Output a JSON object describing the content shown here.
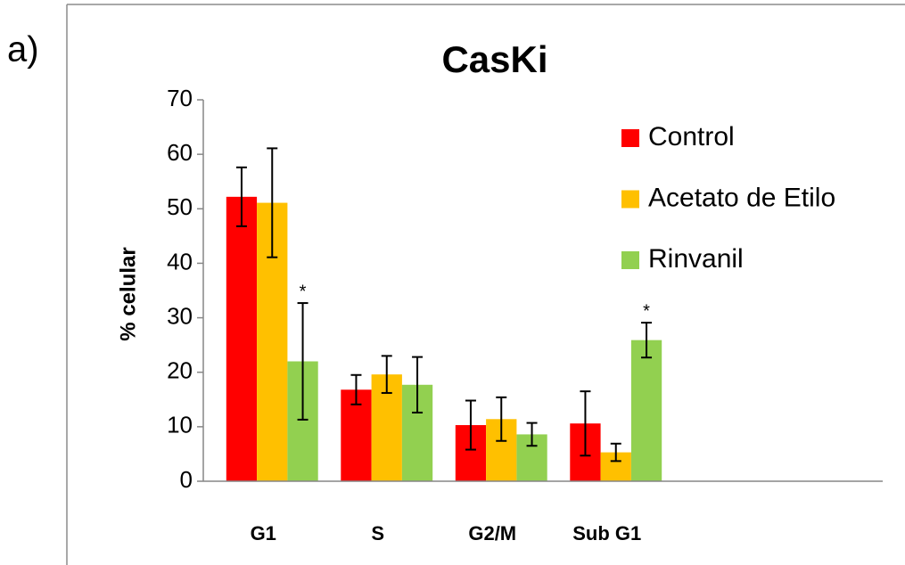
{
  "panel_label": "a)",
  "chart_data": {
    "type": "bar",
    "title": "CasKi",
    "y_label": "% celular",
    "categories": [
      "G1",
      "S",
      "G2/M",
      "Sub G1"
    ],
    "series": [
      {
        "name": "Control",
        "color": "#ff0000",
        "values": [
          52.2,
          16.8,
          10.3,
          10.6
        ],
        "errors": [
          5.4,
          2.7,
          4.5,
          5.9
        ],
        "markers": [
          null,
          null,
          null,
          null
        ]
      },
      {
        "name": "Acetato de Etilo",
        "color": "#ffc000",
        "values": [
          51.1,
          19.6,
          11.4,
          5.3
        ],
        "errors": [
          10,
          3.4,
          4,
          1.6
        ],
        "markers": [
          null,
          null,
          null,
          null
        ]
      },
      {
        "name": "Rinvanil",
        "color": "#92d050",
        "values": [
          22,
          17.7,
          8.6,
          25.9
        ],
        "errors": [
          10.7,
          5.1,
          2.1,
          3.2
        ],
        "markers": [
          "*",
          null,
          null,
          "*"
        ]
      }
    ],
    "ylim": [
      0,
      70
    ],
    "yticks": [
      0,
      10,
      20,
      30,
      40,
      50,
      60,
      70
    ],
    "grid": false,
    "legend": "upper right"
  }
}
